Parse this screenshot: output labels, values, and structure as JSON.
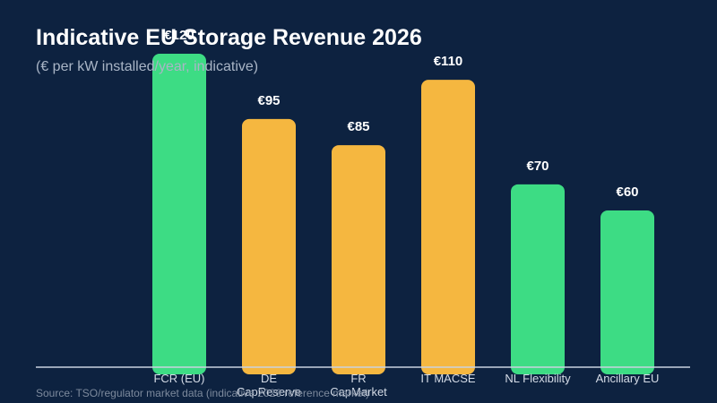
{
  "chart_data": {
    "type": "bar",
    "title": "Indicative EU Storage Revenue 2026",
    "subtitle": "(€ per kW installed/year, indicative)",
    "source": "Source: TSO/regulator market data (indicative 2026 reference market)",
    "categories": [
      [
        "FCR (EU)"
      ],
      [
        "DE",
        "CapReserve"
      ],
      [
        "FR",
        "CapMarket"
      ],
      [
        "IT MACSE"
      ],
      [
        "NL Flexibility"
      ],
      [
        "Ancillary EU"
      ]
    ],
    "values": [
      120,
      95,
      85,
      110,
      70,
      60
    ],
    "value_labels": [
      "€120",
      "€95",
      "€85",
      "€110",
      "€70",
      "€60"
    ],
    "bar_colors": [
      "#3ddc84",
      "#f5b740",
      "#f5b740",
      "#f5b740",
      "#3ddc84",
      "#3ddc84"
    ],
    "ylim": [
      0,
      120
    ],
    "grid": false,
    "legend": "none"
  },
  "colors": {
    "background": "#0d2240",
    "green": "#3ddc84",
    "amber": "#f5b740",
    "axis": "#c9d2df"
  }
}
